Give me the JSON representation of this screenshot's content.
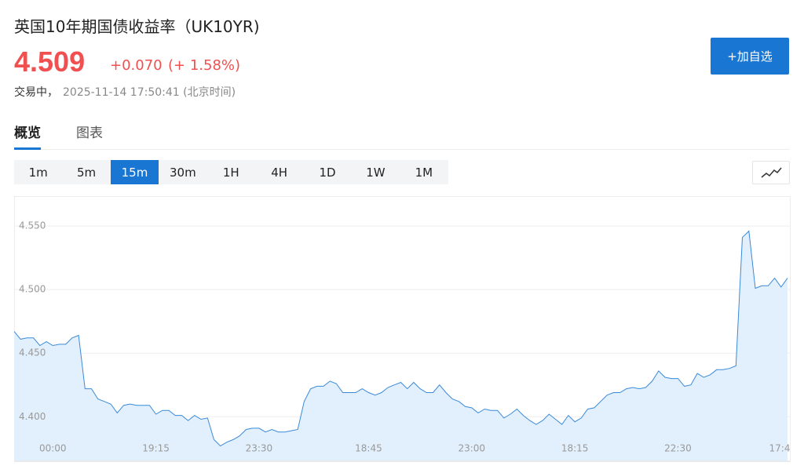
{
  "header": {
    "title": "英国10年期国债收益率（UK10YR)",
    "price": "4.509",
    "change": "+0.070",
    "change_pct": "(+ 1.58%)",
    "status": "交易中，",
    "time": "2025-11-14 17:50:41 (北京时间)",
    "button": "+加自选"
  },
  "tabs": {
    "items": [
      "概览",
      "图表"
    ],
    "selected": 0
  },
  "periods": {
    "items": [
      "1m",
      "5m",
      "15m",
      "30m",
      "1H",
      "4H",
      "1D",
      "1W",
      "1M"
    ],
    "selected": 2
  },
  "chart_data": {
    "type": "area",
    "line_color": "#3a8ad8",
    "fill_color": "#e2effc",
    "grid": true,
    "ylim": [
      4.365,
      4.5735
    ],
    "yticks": [
      {
        "value": 4.4,
        "label": "4.400"
      },
      {
        "value": 4.45,
        "label": "4.450"
      },
      {
        "value": 4.5,
        "label": "4.500"
      },
      {
        "value": 4.55,
        "label": "4.550"
      }
    ],
    "categories": [
      null,
      null,
      null,
      null,
      null,
      null,
      "00:00",
      null,
      null,
      null,
      null,
      null,
      null,
      null,
      null,
      null,
      null,
      null,
      null,
      null,
      null,
      null,
      "19:15",
      null,
      null,
      null,
      null,
      null,
      null,
      null,
      null,
      null,
      null,
      null,
      null,
      null,
      null,
      null,
      "23:30",
      null,
      null,
      null,
      null,
      null,
      null,
      null,
      null,
      null,
      null,
      null,
      null,
      null,
      null,
      null,
      null,
      "18:45",
      null,
      null,
      null,
      null,
      null,
      null,
      null,
      null,
      null,
      null,
      null,
      null,
      null,
      null,
      null,
      "23:00",
      null,
      null,
      null,
      null,
      null,
      null,
      null,
      null,
      null,
      null,
      null,
      null,
      null,
      null,
      null,
      "18:15",
      null,
      null,
      null,
      null,
      null,
      null,
      null,
      null,
      null,
      null,
      null,
      null,
      null,
      null,
      null,
      "22:30",
      null,
      null,
      null,
      null,
      null,
      null,
      null,
      null,
      null,
      null,
      null,
      null,
      null,
      null,
      null,
      "17:4",
      null
    ],
    "values": [
      4.467,
      4.461,
      4.462,
      4.462,
      4.456,
      4.459,
      4.456,
      4.457,
      4.457,
      4.462,
      4.464,
      4.422,
      4.422,
      4.414,
      4.412,
      4.41,
      4.403,
      4.409,
      4.41,
      4.409,
      4.409,
      4.409,
      4.402,
      4.405,
      4.405,
      4.401,
      4.401,
      4.397,
      4.401,
      4.398,
      4.399,
      4.382,
      4.377,
      4.38,
      4.382,
      4.385,
      4.39,
      4.391,
      4.391,
      4.388,
      4.39,
      4.388,
      4.388,
      4.389,
      4.39,
      4.412,
      4.422,
      4.424,
      4.424,
      4.428,
      4.426,
      4.419,
      4.419,
      4.419,
      4.422,
      4.419,
      4.417,
      4.419,
      4.423,
      4.425,
      4.427,
      4.422,
      4.427,
      4.422,
      4.419,
      4.419,
      4.425,
      4.419,
      4.414,
      4.412,
      4.408,
      4.407,
      4.403,
      4.406,
      4.405,
      4.405,
      4.399,
      4.402,
      4.406,
      4.401,
      4.397,
      4.394,
      4.397,
      4.402,
      4.398,
      4.394,
      4.401,
      4.396,
      4.399,
      4.406,
      4.407,
      4.412,
      4.417,
      4.419,
      4.419,
      4.422,
      4.423,
      4.422,
      4.423,
      4.428,
      4.436,
      4.431,
      4.43,
      4.43,
      4.424,
      4.425,
      4.434,
      4.431,
      4.433,
      4.437,
      4.437,
      4.438,
      4.44,
      4.541,
      4.546,
      4.501,
      4.503,
      4.503,
      4.509,
      4.502,
      4.509
    ]
  }
}
